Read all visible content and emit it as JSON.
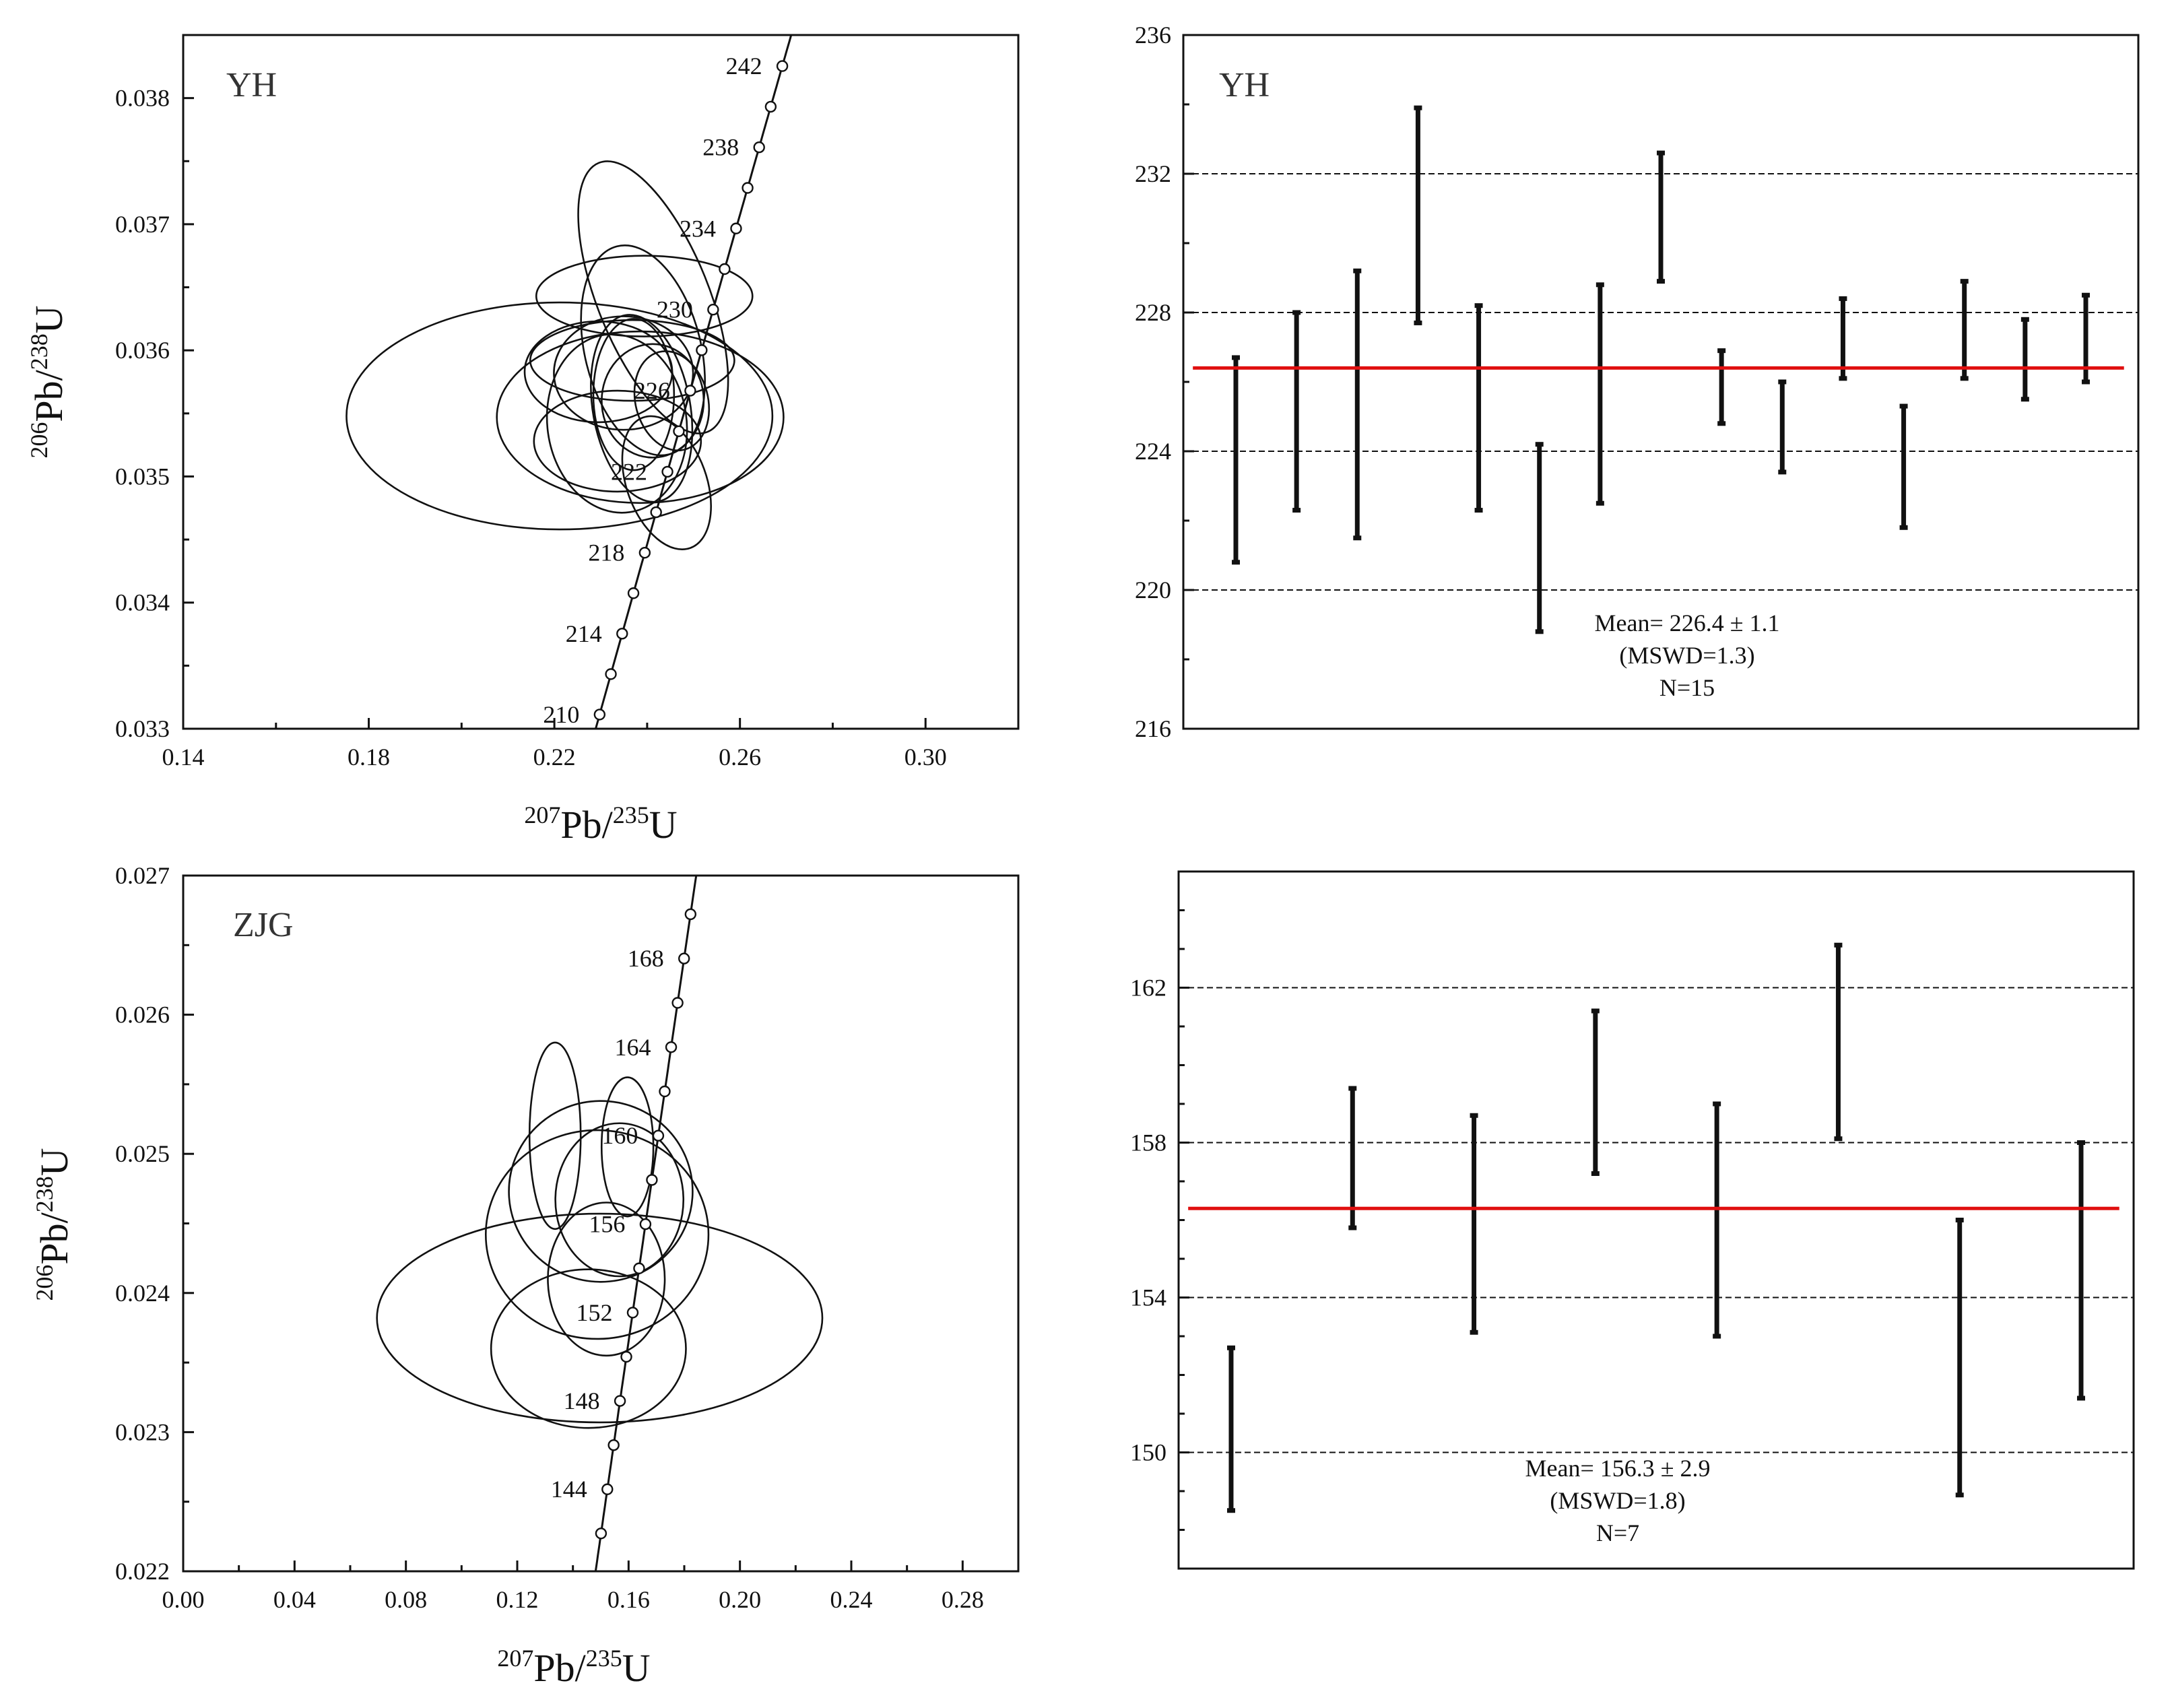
{
  "chart_data": [
    {
      "id": "yh-concordia",
      "type": "scatter",
      "subtype": "concordia",
      "title": "YH",
      "xlabel": {
        "base": "Pb/",
        "parts": [
          {
            "sup": "207"
          },
          {
            "t": "Pb/"
          },
          {
            "sup": "235"
          },
          {
            "t": "U"
          }
        ]
      },
      "ylabel": {
        "parts": [
          {
            "sup": "206"
          },
          {
            "t": "Pb/"
          },
          {
            "sup": "238"
          },
          {
            "t": "U"
          }
        ]
      },
      "xlim": [
        0.14,
        0.32
      ],
      "ylim": [
        0.033,
        0.0385
      ],
      "xticks": [
        "0.14",
        "0.18",
        "0.22",
        "0.26",
        "0.30"
      ],
      "xtick_values": [
        0.14,
        0.18,
        0.22,
        0.26,
        0.3
      ],
      "x_minor_step": 0.02,
      "yticks": [
        "0.033",
        "0.034",
        "0.035",
        "0.036",
        "0.037",
        "0.038"
      ],
      "ytick_values": [
        0.033,
        0.034,
        0.035,
        0.036,
        0.037,
        0.038
      ],
      "y_minor_step": 0.0005,
      "concordia_ages": [
        210,
        212,
        214,
        216,
        218,
        220,
        222,
        224,
        226,
        228,
        230,
        232,
        234,
        236,
        238,
        240,
        242
      ],
      "concordia_labels": [
        "210",
        "214",
        "218",
        "222",
        "226",
        "230",
        "234",
        "238",
        "242"
      ],
      "concordia_label_ages": [
        210,
        214,
        218,
        222,
        226,
        230,
        234,
        238,
        242
      ],
      "ellipses": [
        {
          "x": 0.2211,
          "y": 0.03548,
          "rx": 0.0459,
          "ry": 0.0009,
          "angle": 0
        },
        {
          "x": 0.2385,
          "y": 0.03547,
          "rx": 0.0309,
          "ry": 0.00068,
          "angle": 0
        },
        {
          "x": 0.2394,
          "y": 0.03643,
          "rx": 0.0233,
          "ry": 0.00032,
          "angle": 0
        },
        {
          "x": 0.2295,
          "y": 0.03583,
          "rx": 0.0159,
          "ry": 0.0004,
          "angle": 0
        },
        {
          "x": 0.2391,
          "y": 0.036,
          "rx": 0.0125,
          "ry": 0.00085,
          "angle": 14
        },
        {
          "x": 0.2368,
          "y": 0.03592,
          "rx": 0.022,
          "ry": 0.00032,
          "angle": 0
        },
        {
          "x": 0.2413,
          "y": 0.03642,
          "rx": 0.012,
          "ry": 0.00115,
          "angle": 22
        },
        {
          "x": 0.2335,
          "y": 0.03542,
          "rx": 0.015,
          "ry": 0.00071,
          "angle": 8
        },
        {
          "x": 0.2388,
          "y": 0.03554,
          "rx": 0.0105,
          "ry": 0.00075,
          "angle": 10
        },
        {
          "x": 0.2371,
          "y": 0.03565,
          "rx": 0.0087,
          "ry": 0.0006,
          "angle": 0
        },
        {
          "x": 0.2336,
          "y": 0.03528,
          "rx": 0.018,
          "ry": 0.0004,
          "angle": 0
        },
        {
          "x": 0.2412,
          "y": 0.0356,
          "rx": 0.011,
          "ry": 0.00045,
          "angle": 0
        },
        {
          "x": 0.2442,
          "y": 0.03495,
          "rx": 0.0086,
          "ry": 0.00055,
          "angle": 20
        },
        {
          "x": 0.2453,
          "y": 0.0356,
          "rx": 0.0078,
          "ry": 0.0004,
          "angle": 15
        },
        {
          "x": 0.2349,
          "y": 0.03582,
          "rx": 0.015,
          "ry": 0.00045,
          "angle": 0
        }
      ]
    },
    {
      "id": "yh-mean",
      "type": "bar",
      "subtype": "weighted-mean",
      "title": "YH",
      "ylim": [
        216,
        236
      ],
      "yticks": [
        "216",
        "220",
        "224",
        "228",
        "232",
        "236"
      ],
      "ytick_values": [
        216,
        220,
        224,
        228,
        232,
        236
      ],
      "y_minor_step": 2,
      "grid_values": [
        220,
        224,
        228,
        232
      ],
      "mean": 226.4,
      "error": 1.1,
      "mswd": 1.3,
      "n": 15,
      "summary": [
        "Mean= 226.4 ± 1.1",
        "(MSWD=1.3)",
        "N=15"
      ],
      "bars": [
        {
          "low": 220.8,
          "high": 226.7
        },
        {
          "low": 222.3,
          "high": 228.0
        },
        {
          "low": 221.5,
          "high": 229.2
        },
        {
          "low": 227.7,
          "high": 233.9
        },
        {
          "low": 222.3,
          "high": 228.2
        },
        {
          "low": 218.8,
          "high": 224.2
        },
        {
          "low": 222.5,
          "high": 228.8
        },
        {
          "low": 228.9,
          "high": 232.6
        },
        {
          "low": 224.8,
          "high": 226.9
        },
        {
          "low": 223.4,
          "high": 226.0
        },
        {
          "low": 226.1,
          "high": 228.4
        },
        {
          "low": 221.8,
          "high": 225.3
        },
        {
          "low": 226.1,
          "high": 228.9
        },
        {
          "low": 225.5,
          "high": 227.8
        },
        {
          "low": 226.0,
          "high": 228.5
        }
      ]
    },
    {
      "id": "zjg-concordia",
      "type": "scatter",
      "subtype": "concordia",
      "title": "ZJG",
      "xlabel": {
        "parts": [
          {
            "sup": "207"
          },
          {
            "t": "Pb/"
          },
          {
            "sup": "235"
          },
          {
            "t": "U"
          }
        ]
      },
      "ylabel": {
        "parts": [
          {
            "sup": "206"
          },
          {
            "t": "Pb/"
          },
          {
            "sup": "238"
          },
          {
            "t": "U"
          }
        ]
      },
      "xlim": [
        0.0,
        0.3
      ],
      "ylim": [
        0.022,
        0.027
      ],
      "xticks": [
        "0.00",
        "0.04",
        "0.08",
        "0.12",
        "0.16",
        "0.20",
        "0.24",
        "0.28"
      ],
      "xtick_values": [
        0.0,
        0.04,
        0.08,
        0.12,
        0.16,
        0.2,
        0.24,
        0.28
      ],
      "x_minor_step": 0.02,
      "yticks": [
        "0.022",
        "0.023",
        "0.024",
        "0.025",
        "0.026",
        "0.027"
      ],
      "ytick_values": [
        0.022,
        0.023,
        0.024,
        0.025,
        0.026,
        0.027
      ],
      "y_minor_step": 0.0005,
      "concordia_ages": [
        142,
        144,
        146,
        148,
        150,
        152,
        154,
        156,
        158,
        160,
        162,
        164,
        166,
        168,
        170
      ],
      "concordia_labels": [
        "144",
        "148",
        "152",
        "156",
        "160",
        "164",
        "168"
      ],
      "concordia_label_ages": [
        144,
        148,
        152,
        156,
        160,
        164,
        168
      ],
      "ellipses": [
        {
          "x": 0.1336,
          "y": 0.02513,
          "rx": 0.0092,
          "ry": 0.00067,
          "angle": 0
        },
        {
          "x": 0.1596,
          "y": 0.02505,
          "rx": 0.0093,
          "ry": 0.0005,
          "angle": 0
        },
        {
          "x": 0.15,
          "y": 0.02473,
          "rx": 0.033,
          "ry": 0.00065,
          "angle": 0
        },
        {
          "x": 0.1487,
          "y": 0.02442,
          "rx": 0.04,
          "ry": 0.00075,
          "angle": 0
        },
        {
          "x": 0.1567,
          "y": 0.02467,
          "rx": 0.023,
          "ry": 0.00055,
          "angle": 0
        },
        {
          "x": 0.152,
          "y": 0.0241,
          "rx": 0.021,
          "ry": 0.00055,
          "angle": 0
        },
        {
          "x": 0.1496,
          "y": 0.02382,
          "rx": 0.08,
          "ry": 0.00075,
          "angle": 0
        },
        {
          "x": 0.1456,
          "y": 0.0236,
          "rx": 0.035,
          "ry": 0.00057,
          "angle": 0
        }
      ]
    },
    {
      "id": "zjg-mean",
      "type": "bar",
      "subtype": "weighted-mean",
      "title": "",
      "ylim": [
        147,
        165
      ],
      "yticks": [
        "150",
        "154",
        "158",
        "162"
      ],
      "ytick_values": [
        150,
        154,
        158,
        162
      ],
      "y_minor_step": 1,
      "grid_values": [
        150,
        154,
        158,
        162
      ],
      "mean": 156.3,
      "error": 2.9,
      "mswd": 1.8,
      "n": 7,
      "summary": [
        "Mean= 156.3 ± 2.9",
        "(MSWD=1.8)",
        "N=7"
      ],
      "bars": [
        {
          "low": 148.5,
          "high": 152.7
        },
        {
          "low": 155.8,
          "high": 159.4
        },
        {
          "low": 153.1,
          "high": 158.7
        },
        {
          "low": 157.2,
          "high": 161.4
        },
        {
          "low": 153.0,
          "high": 159.0
        },
        {
          "low": 158.1,
          "high": 163.1
        },
        {
          "low": 148.9,
          "high": 156.0
        },
        {
          "low": 151.4,
          "high": 158.0
        }
      ]
    }
  ]
}
